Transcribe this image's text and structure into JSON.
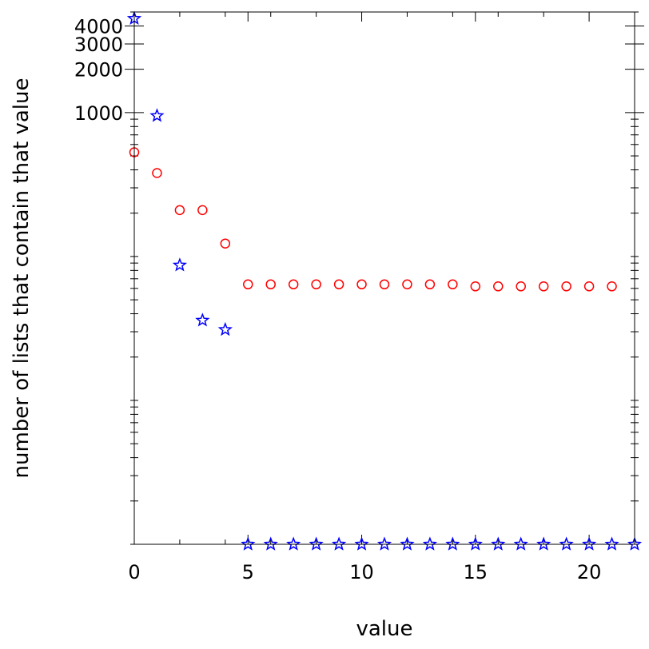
{
  "chart_data": {
    "type": "scatter",
    "xlabel": "value",
    "ylabel": "number of lists that contain that value",
    "xlim": [
      0,
      22
    ],
    "y_scale": "log",
    "ylim": [
      1,
      5000
    ],
    "x_ticks": [
      0,
      5,
      10,
      15,
      20
    ],
    "x_tick_labels": [
      "0",
      "5",
      "10",
      "15",
      "20"
    ],
    "y_ticks": [
      1000,
      2000,
      3000,
      4000
    ],
    "y_tick_labels": [
      "1000",
      "2000",
      "3000",
      "4000"
    ],
    "grid": false,
    "series": [
      {
        "marker": "circle",
        "color": "#ff0000",
        "x": [
          0,
          1,
          2,
          3,
          4,
          5,
          6,
          7,
          8,
          9,
          10,
          11,
          12,
          13,
          14,
          15,
          16,
          17,
          18,
          19,
          20,
          21
        ],
        "y": [
          530,
          380,
          210,
          210,
          123,
          64,
          64,
          64,
          64,
          64,
          64,
          64,
          64,
          64,
          64,
          62,
          62,
          62,
          62,
          62,
          62,
          62
        ]
      },
      {
        "marker": "star",
        "color": "#0000ff",
        "x": [
          0,
          1,
          2,
          3,
          4,
          5,
          6,
          7,
          8,
          9,
          10,
          11,
          12,
          13,
          14,
          15,
          16,
          17,
          18,
          19,
          20,
          21,
          22
        ],
        "y": [
          4500,
          950,
          87,
          36,
          31,
          1,
          1,
          1,
          1,
          1,
          1,
          1,
          1,
          1,
          1,
          1,
          1,
          1,
          1,
          1,
          1,
          1,
          1
        ]
      }
    ]
  }
}
